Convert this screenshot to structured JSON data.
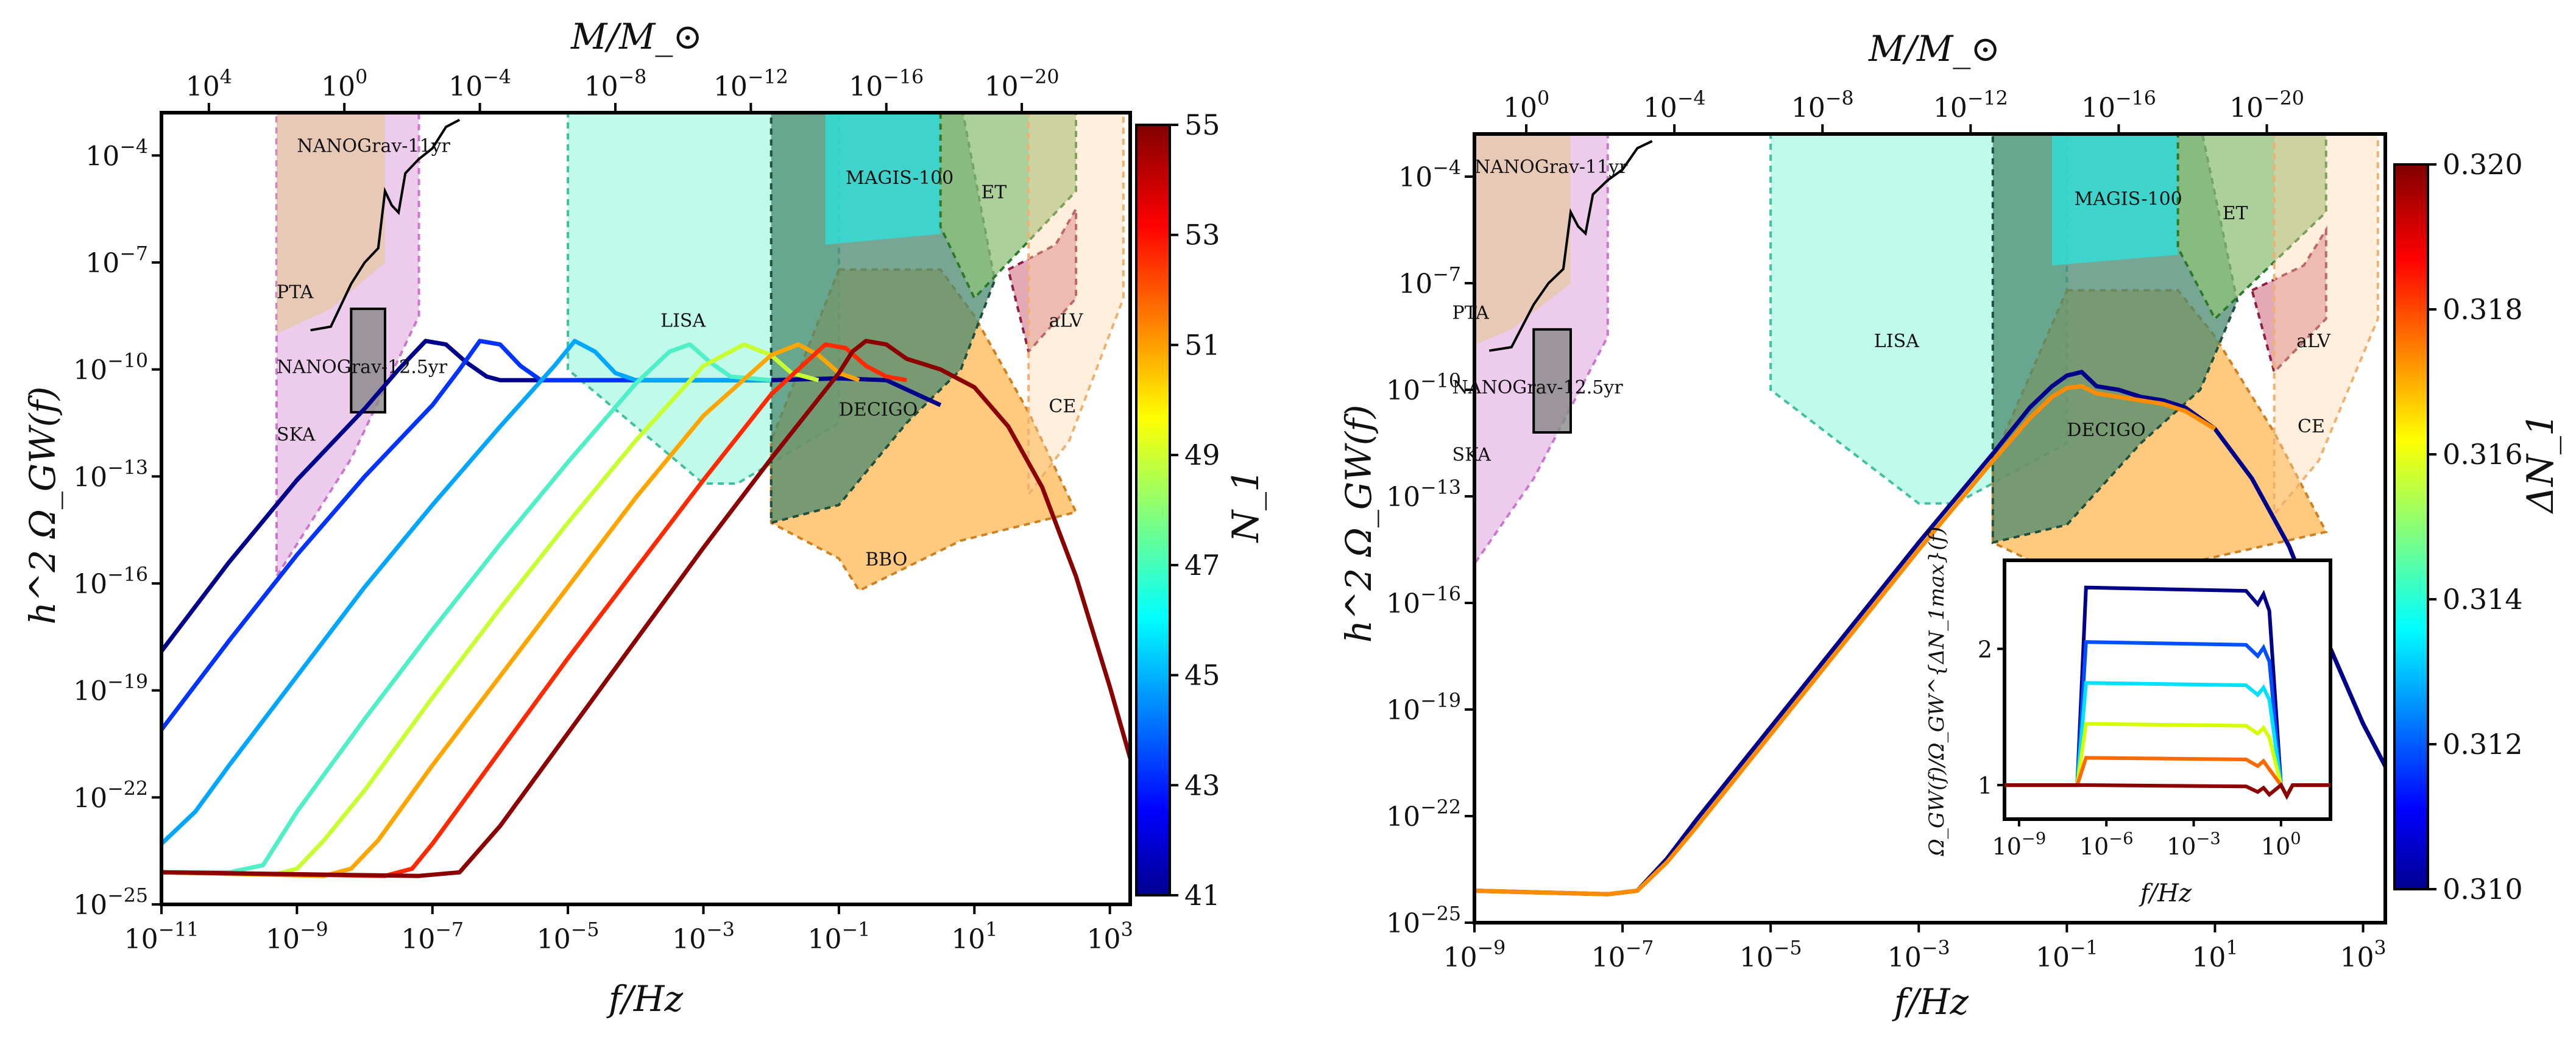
{
  "chart_data": [
    {
      "type": "line",
      "panel": "left",
      "ylabel": "h^2 Ω_GW(f)",
      "xlabel": "f/Hz",
      "top_xlabel": "M/M_⊙",
      "x_log": true,
      "y_log": true,
      "xlim_exp": [
        -11,
        3.3
      ],
      "ylim_exp": [
        -25,
        -2.8
      ],
      "x_ticks": [
        "10^-11",
        "10^-9",
        "10^-7",
        "10^-5",
        "10^-3",
        "10^-1",
        "10^1",
        "10^3"
      ],
      "y_ticks": [
        "10^-25",
        "10^-22",
        "10^-19",
        "10^-16",
        "10^-13",
        "10^-10",
        "10^-7",
        "10^-4"
      ],
      "top_ticks": [
        "10^4",
        "10^0",
        "10^-4",
        "10^-8",
        "10^-12",
        "10^-16",
        "10^-20"
      ],
      "colorbar": {
        "label": "N_1",
        "min": 41,
        "max": 55,
        "ticks": [
          "41",
          "43",
          "45",
          "47",
          "49",
          "51",
          "53",
          "55"
        ]
      },
      "series": [
        {
          "N1": 41,
          "color": "#00008b",
          "points": [
            [
              -11,
              -17.9
            ],
            [
              -10,
              -15.4
            ],
            [
              -9,
              -13.1
            ],
            [
              -8,
              -11.1
            ],
            [
              -7.5,
              -10.0
            ],
            [
              -7.1,
              -9.2
            ],
            [
              -6.8,
              -9.3
            ],
            [
              -6.5,
              -9.8
            ],
            [
              -6.2,
              -10.2
            ],
            [
              -6,
              -10.3
            ],
            [
              -2,
              -10.3
            ],
            [
              -1,
              -10.25
            ],
            [
              -0.3,
              -10.3
            ],
            [
              0.5,
              -11.0
            ]
          ]
        },
        {
          "N1": 43,
          "color": "#0033ff",
          "points": [
            [
              -11,
              -20.1
            ],
            [
              -10,
              -17.6
            ],
            [
              -9,
              -15.2
            ],
            [
              -8,
              -13.0
            ],
            [
              -7,
              -11.0
            ],
            [
              -6.6,
              -10.0
            ],
            [
              -6.3,
              -9.2
            ],
            [
              -6,
              -9.3
            ],
            [
              -5.7,
              -9.9
            ],
            [
              -5.4,
              -10.3
            ],
            [
              -2,
              -10.3
            ]
          ]
        },
        {
          "N1": 45,
          "color": "#00a6ff",
          "points": [
            [
              -11,
              -23.3
            ],
            [
              -10.5,
              -22.4
            ],
            [
              -10,
              -21.1
            ],
            [
              -9,
              -18.6
            ],
            [
              -8,
              -16.1
            ],
            [
              -7,
              -13.8
            ],
            [
              -6,
              -11.6
            ],
            [
              -5.2,
              -9.9
            ],
            [
              -4.9,
              -9.2
            ],
            [
              -4.6,
              -9.5
            ],
            [
              -4.3,
              -10.1
            ],
            [
              -4,
              -10.3
            ],
            [
              -2,
              -10.3
            ]
          ]
        },
        {
          "N1": 47,
          "color": "#4ff0c8",
          "points": [
            [
              -11,
              -24.1
            ],
            [
              -10,
              -24.1
            ],
            [
              -9.5,
              -23.9
            ],
            [
              -9,
              -22.4
            ],
            [
              -8,
              -19.8
            ],
            [
              -7,
              -17.3
            ],
            [
              -6,
              -14.9
            ],
            [
              -5,
              -12.6
            ],
            [
              -4,
              -10.4
            ],
            [
              -3.5,
              -9.5
            ],
            [
              -3.2,
              -9.3
            ],
            [
              -2.9,
              -9.8
            ],
            [
              -2.6,
              -10.2
            ],
            [
              -2,
              -10.3
            ]
          ]
        },
        {
          "N1": 49,
          "color": "#c8ff32",
          "points": [
            [
              -11,
              -24.1
            ],
            [
              -9.3,
              -24.15
            ],
            [
              -9.0,
              -24.0
            ],
            [
              -8.6,
              -23.2
            ],
            [
              -8,
              -21.8
            ],
            [
              -7,
              -19.2
            ],
            [
              -6,
              -16.7
            ],
            [
              -5,
              -14.3
            ],
            [
              -4,
              -12.0
            ],
            [
              -3,
              -9.9
            ],
            [
              -2.4,
              -9.3
            ],
            [
              -2.0,
              -9.6
            ],
            [
              -1.7,
              -10.1
            ],
            [
              -1.3,
              -10.3
            ]
          ]
        },
        {
          "N1": 51,
          "color": "#ffa500",
          "points": [
            [
              -11,
              -24.1
            ],
            [
              -8.6,
              -24.2
            ],
            [
              -8.2,
              -24.0
            ],
            [
              -7.8,
              -23.2
            ],
            [
              -7,
              -21.1
            ],
            [
              -6,
              -18.6
            ],
            [
              -5,
              -16.1
            ],
            [
              -4,
              -13.6
            ],
            [
              -3,
              -11.3
            ],
            [
              -2,
              -9.6
            ],
            [
              -1.6,
              -9.3
            ],
            [
              -1.3,
              -9.6
            ],
            [
              -1.0,
              -10.1
            ],
            [
              -0.7,
              -10.3
            ]
          ]
        },
        {
          "N1": 53,
          "color": "#ff2a00",
          "points": [
            [
              -11,
              -24.1
            ],
            [
              -7.7,
              -24.2
            ],
            [
              -7.3,
              -24.0
            ],
            [
              -7,
              -23.3
            ],
            [
              -6,
              -20.7
            ],
            [
              -5,
              -18.1
            ],
            [
              -4,
              -15.6
            ],
            [
              -3,
              -13.1
            ],
            [
              -2,
              -10.7
            ],
            [
              -1.2,
              -9.3
            ],
            [
              -0.9,
              -9.4
            ],
            [
              -0.6,
              -9.9
            ],
            [
              -0.3,
              -10.2
            ],
            [
              0,
              -10.3
            ]
          ]
        },
        {
          "N1": 55,
          "color": "#8b0000",
          "points": [
            [
              -11,
              -24.1
            ],
            [
              -7.2,
              -24.2
            ],
            [
              -6.6,
              -24.1
            ],
            [
              -6,
              -22.8
            ],
            [
              -5,
              -20.2
            ],
            [
              -4,
              -17.6
            ],
            [
              -3,
              -15.0
            ],
            [
              -2,
              -12.5
            ],
            [
              -1,
              -10.1
            ],
            [
              -0.8,
              -9.5
            ],
            [
              -0.6,
              -9.2
            ],
            [
              -0.3,
              -9.3
            ],
            [
              0,
              -9.7
            ],
            [
              0.5,
              -10.0
            ],
            [
              1,
              -10.5
            ],
            [
              1.5,
              -11.6
            ],
            [
              2,
              -13.3
            ],
            [
              2.5,
              -15.8
            ],
            [
              3,
              -18.9
            ],
            [
              3.3,
              -20.9
            ]
          ]
        }
      ],
      "sensitivity_labels": [
        "NANOGrav-11yr",
        "PTA",
        "NANOGrav-12.5yr",
        "SKA",
        "LISA",
        "MAGIS-100",
        "ET",
        "aLV",
        "DECIGO",
        "BBO",
        "CE"
      ]
    },
    {
      "type": "line",
      "panel": "right",
      "ylabel": "h^2 Ω_GW(f)",
      "xlabel": "f/Hz",
      "top_xlabel": "M/M_⊙",
      "x_log": true,
      "y_log": true,
      "xlim_exp": [
        -9,
        3.3
      ],
      "ylim_exp": [
        -25,
        -2.8
      ],
      "x_ticks": [
        "10^-9",
        "10^-7",
        "10^-5",
        "10^-3",
        "10^-1",
        "10^1",
        "10^3"
      ],
      "y_ticks": [
        "10^-25",
        "10^-22",
        "10^-19",
        "10^-16",
        "10^-13",
        "10^-10",
        "10^-7",
        "10^-4"
      ],
      "top_ticks": [
        "10^0",
        "10^-4",
        "10^-8",
        "10^-12",
        "10^-16",
        "10^-20"
      ],
      "colorbar": {
        "label": "ΔN_1",
        "min": 0.31,
        "max": 0.32,
        "ticks": [
          "0.310",
          "0.312",
          "0.314",
          "0.316",
          "0.318",
          "0.320"
        ]
      },
      "series": [
        {
          "color": "#00008b",
          "points": [
            [
              -9,
              -24.1
            ],
            [
              -7.2,
              -24.2
            ],
            [
              -6.8,
              -24.1
            ],
            [
              -6.4,
              -23.2
            ],
            [
              -6,
              -22.1
            ],
            [
              -5,
              -19.5
            ],
            [
              -4,
              -16.9
            ],
            [
              -3,
              -14.3
            ],
            [
              -2,
              -11.8
            ],
            [
              -1.5,
              -10.5
            ],
            [
              -1.2,
              -9.9
            ],
            [
              -1.0,
              -9.6
            ],
            [
              -0.8,
              -9.5
            ],
            [
              -0.6,
              -9.9
            ],
            [
              -0.3,
              -10.0
            ],
            [
              0,
              -10.2
            ],
            [
              0.3,
              -10.3
            ],
            [
              0.6,
              -10.5
            ],
            [
              1,
              -11.1
            ],
            [
              1.5,
              -12.5
            ],
            [
              2,
              -14.4
            ],
            [
              2.5,
              -17.0
            ],
            [
              3,
              -19.4
            ],
            [
              3.3,
              -20.6
            ]
          ]
        },
        {
          "color": "#ff8c00",
          "points": [
            [
              -9,
              -24.1
            ],
            [
              -7.2,
              -24.2
            ],
            [
              -6.8,
              -24.1
            ],
            [
              -6.4,
              -23.3
            ],
            [
              -6,
              -22.3
            ],
            [
              -5,
              -19.7
            ],
            [
              -4,
              -17.1
            ],
            [
              -3,
              -14.5
            ],
            [
              -2,
              -12.0
            ],
            [
              -1.5,
              -10.8
            ],
            [
              -1.2,
              -10.2
            ],
            [
              -1.0,
              -9.95
            ],
            [
              -0.8,
              -9.9
            ],
            [
              -0.6,
              -10.1
            ],
            [
              -0.3,
              -10.2
            ],
            [
              0,
              -10.3
            ],
            [
              0.3,
              -10.4
            ],
            [
              0.6,
              -10.6
            ],
            [
              1,
              -11.1
            ]
          ]
        }
      ],
      "sensitivity_labels": [
        "NANOGrav-11yr",
        "PTA",
        "NANOGrav-12.5yr",
        "SKA",
        "LISA",
        "MAGIS-100",
        "ET",
        "aLV",
        "DECIGO",
        "CE"
      ],
      "inset": {
        "ylabel": "Ω_GW(f)/Ω_GW^{ΔN_1max}(f)",
        "xlabel": "f/Hz",
        "x_ticks": [
          "10^-9",
          "10^-6",
          "10^-3",
          "10^0"
        ],
        "y_ticks": [
          "1",
          "2"
        ],
        "xlim_exp": [
          -9.5,
          1.7
        ],
        "ylim": [
          0.75,
          2.65
        ],
        "series": [
          {
            "color": "#00008b",
            "level": 2.45
          },
          {
            "color": "#0050ff",
            "level": 2.05
          },
          {
            "color": "#00e0ff",
            "level": 1.75
          },
          {
            "color": "#d4ff00",
            "level": 1.45
          },
          {
            "color": "#ff6a00",
            "level": 1.2
          },
          {
            "color": "#8b0000",
            "level": 1.0
          }
        ]
      }
    }
  ]
}
